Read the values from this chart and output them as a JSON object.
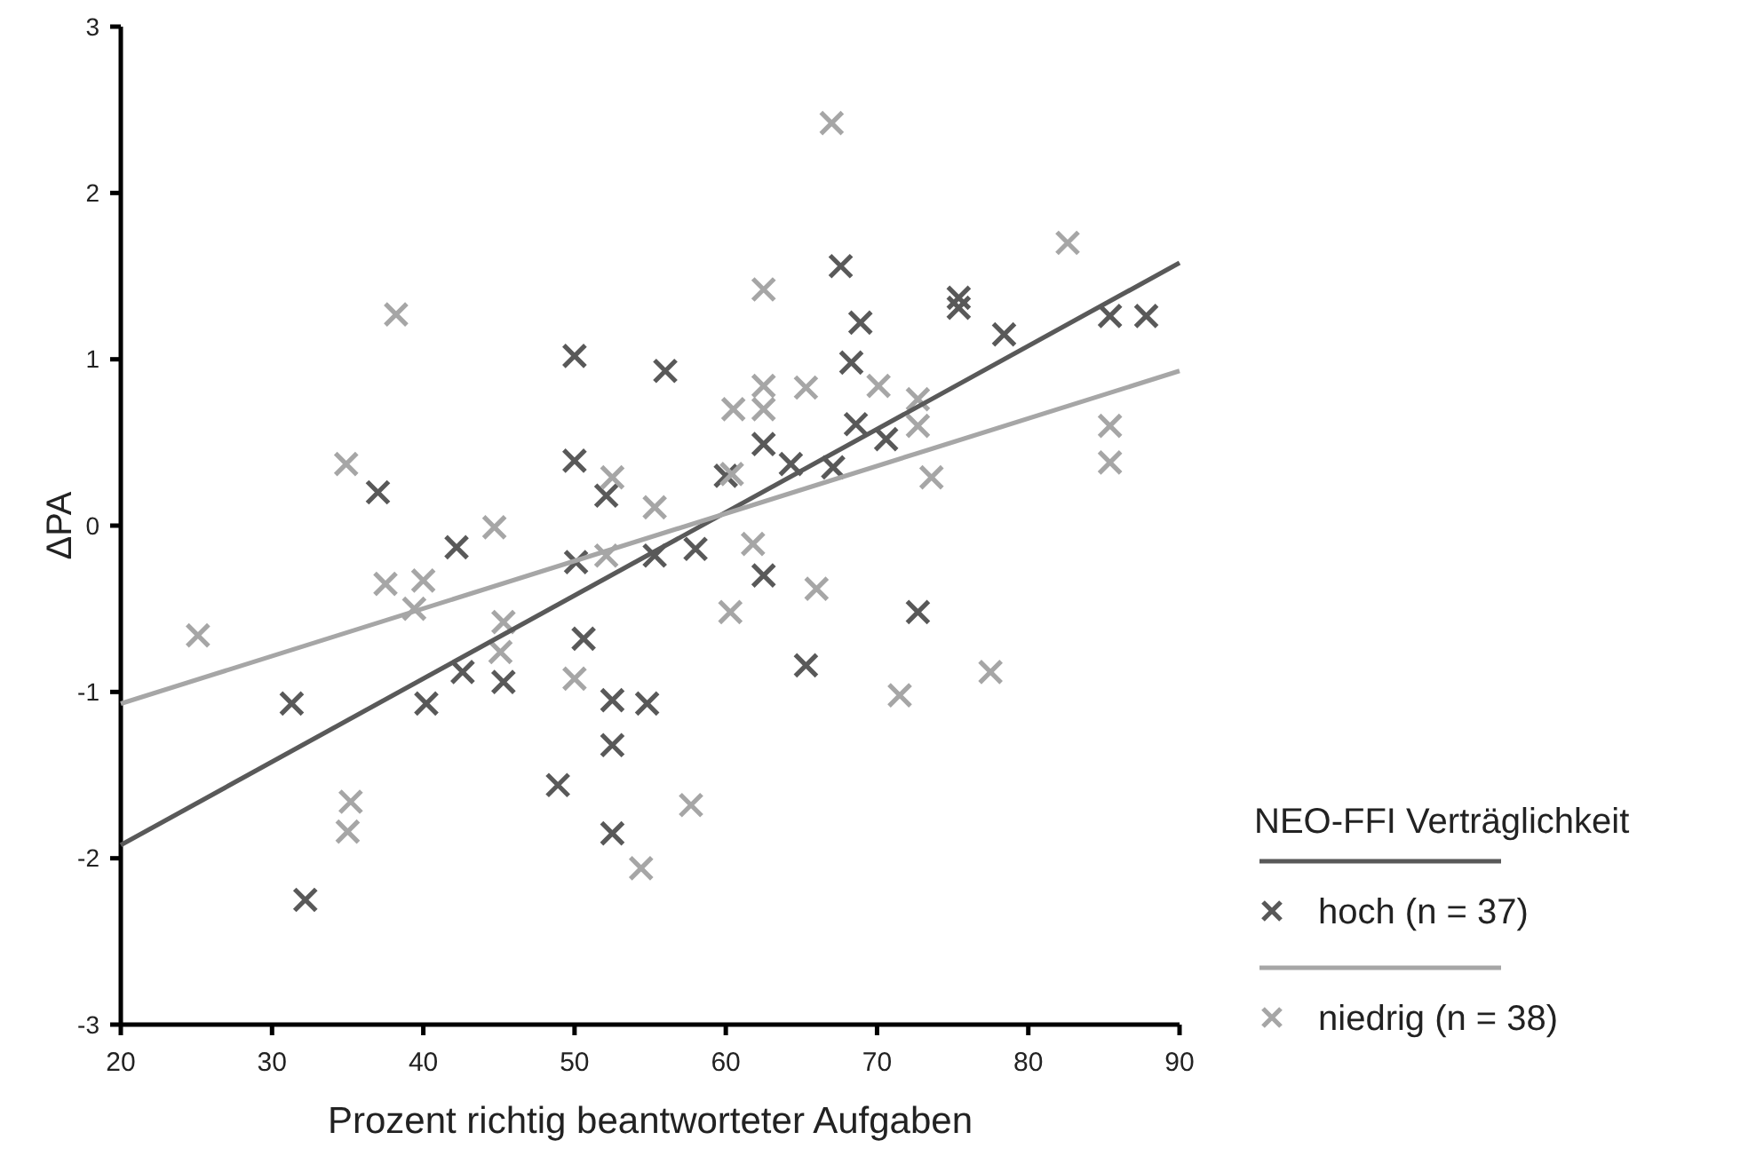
{
  "chart_data": {
    "type": "scatter",
    "xlabel": "Prozent richtig beantworteter Aufgaben",
    "ylabel": "ΔPA",
    "legend_title": "NEO-FFI Verträglichkeit",
    "legend": "bottom right",
    "grid": false,
    "xlim": [
      20,
      90
    ],
    "xticks": [
      20,
      30,
      40,
      50,
      60,
      70,
      80,
      90
    ],
    "ylim": [
      -3,
      3
    ],
    "yticks": [
      -3,
      -2,
      -1,
      0,
      1,
      2,
      3
    ],
    "series": [
      {
        "name": "hoch (n = 37)",
        "marker": "cross",
        "color": "#595959",
        "x": [
          31.3,
          32.2,
          37.0,
          40.2,
          42.2,
          42.6,
          45.3,
          48.9,
          50.0,
          50.0,
          50.1,
          50.6,
          52.1,
          52.5,
          52.5,
          52.5,
          54.8,
          55.3,
          56.0,
          58.0,
          60.0,
          62.5,
          62.5,
          64.3,
          65.3,
          67.1,
          67.6,
          68.3,
          68.6,
          68.9,
          70.6,
          72.7,
          75.4,
          75.4,
          78.4,
          85.4,
          87.8
        ],
        "values": [
          -1.07,
          -2.25,
          0.2,
          -1.07,
          -0.13,
          -0.88,
          -0.94,
          -1.56,
          1.02,
          0.39,
          -0.22,
          -0.68,
          0.18,
          -1.05,
          -1.32,
          -1.85,
          -1.07,
          -0.18,
          0.93,
          -0.14,
          0.3,
          0.49,
          -0.3,
          0.37,
          -0.84,
          0.35,
          1.56,
          0.98,
          0.61,
          1.22,
          0.52,
          -0.52,
          1.37,
          1.31,
          1.15,
          1.26,
          1.26
        ]
      },
      {
        "name": "niedrig (n = 38)",
        "marker": "cross",
        "color": "#a6a6a6",
        "x": [
          25.1,
          34.9,
          35.0,
          35.2,
          37.5,
          38.2,
          39.4,
          40.0,
          44.7,
          45.1,
          45.3,
          50.0,
          52.1,
          52.5,
          54.4,
          55.3,
          57.7,
          60.3,
          60.4,
          60.5,
          61.8,
          62.5,
          62.5,
          62.5,
          65.3,
          66.0,
          67.0,
          70.1,
          71.5,
          72.7,
          72.7,
          73.6,
          77.5,
          82.6,
          85.4,
          85.4
        ],
        "values": [
          -0.66,
          0.37,
          -1.84,
          -1.66,
          -0.35,
          1.27,
          -0.5,
          -0.33,
          -0.01,
          -0.76,
          -0.58,
          -0.92,
          -0.18,
          0.29,
          -2.06,
          0.11,
          -1.68,
          -0.52,
          0.31,
          0.7,
          -0.11,
          1.42,
          0.84,
          0.7,
          0.83,
          -0.38,
          2.42,
          0.84,
          -1.02,
          0.76,
          0.6,
          0.29,
          -0.88,
          1.7,
          0.6,
          0.38
        ]
      },
      {
        "type": "line",
        "marker": "none",
        "color": "#595959",
        "x": [
          20,
          90
        ],
        "values": [
          -1.92,
          1.58
        ]
      },
      {
        "type": "line",
        "marker": "none",
        "color": "#a6a6a6",
        "x": [
          20,
          90
        ],
        "values": [
          -1.07,
          0.93
        ]
      }
    ]
  }
}
